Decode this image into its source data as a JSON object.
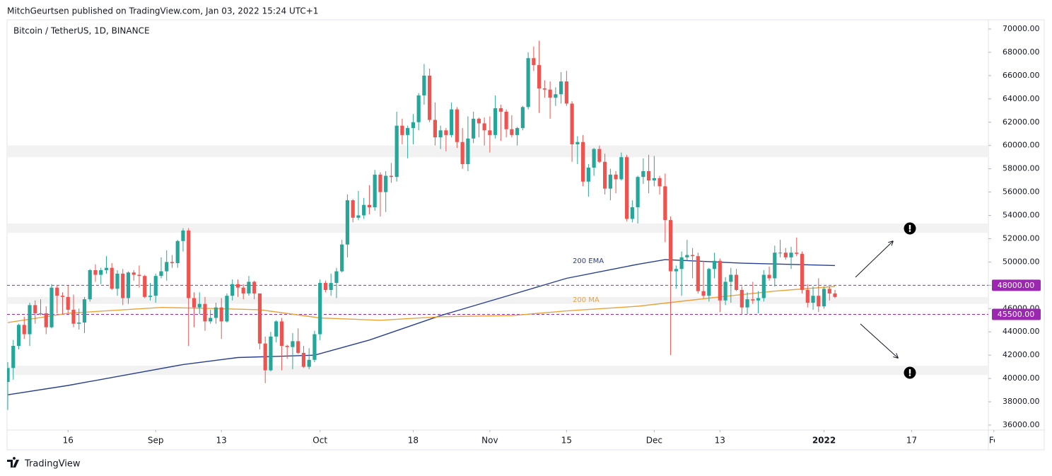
{
  "chart_data": {
    "type": "candlestick",
    "header": "MitchGeurtsen published on TradingView.com, Jan 03, 2022 15:24 UTC+1",
    "title": "Bitcoin / TetherUS, 1D, BINANCE",
    "footer": "TradingView",
    "up_color": "#26a69a",
    "down_color": "#ef5350",
    "level_color": "#9c27b0",
    "zone_color": "#f2f2f2",
    "xlim": [
      -0.13,
      179
    ],
    "ylim": [
      35575,
      70790
    ],
    "xticks": [
      {
        "value": 11,
        "label": "16"
      },
      {
        "value": 27,
        "label": "Sep"
      },
      {
        "value": 39,
        "label": "13"
      },
      {
        "value": 57,
        "label": "Oct"
      },
      {
        "value": 74,
        "label": "18"
      },
      {
        "value": 88,
        "label": "Nov"
      },
      {
        "value": 102,
        "label": "15"
      },
      {
        "value": 118,
        "label": "Dec"
      },
      {
        "value": 130,
        "label": "13"
      },
      {
        "value": 149,
        "label": "2022"
      },
      {
        "value": 165,
        "label": "17"
      },
      {
        "value": 180,
        "label": "Fe"
      }
    ],
    "yticks": [
      {
        "value": 36000,
        "label": "36000.00"
      },
      {
        "value": 38000,
        "label": "38000.00"
      },
      {
        "value": 40000,
        "label": "40000.00"
      },
      {
        "value": 42000,
        "label": "42000.00"
      },
      {
        "value": 44000,
        "label": "44000.00"
      },
      {
        "value": 46000,
        "label": "46000.00"
      },
      {
        "value": 48000,
        "label": "48000.00"
      },
      {
        "value": 50000,
        "label": "50000.00"
      },
      {
        "value": 52000,
        "label": "52000.00"
      },
      {
        "value": 54000,
        "label": "54000.00"
      },
      {
        "value": 56000,
        "label": "56000.00"
      },
      {
        "value": 58000,
        "label": "58000.00"
      },
      {
        "value": 60000,
        "label": "60000.00"
      },
      {
        "value": 62000,
        "label": "62000.00"
      },
      {
        "value": 64000,
        "label": "64000.00"
      },
      {
        "value": 66000,
        "label": "66000.00"
      },
      {
        "value": 68000,
        "label": "68000.00"
      },
      {
        "value": 70000,
        "label": "70000.00"
      }
    ],
    "levels": [
      {
        "value": 48000,
        "label": "48000.00"
      },
      {
        "value": 45500,
        "label": "45500.00"
      }
    ],
    "zones": [
      [
        59000,
        60000
      ],
      [
        52500,
        53300
      ],
      [
        46400,
        47000
      ],
      [
        40300,
        41100
      ]
    ],
    "x": [
      0,
      1,
      2,
      3,
      4,
      5,
      6,
      7,
      8,
      9,
      10,
      11,
      12,
      13,
      14,
      15,
      16,
      17,
      18,
      19,
      20,
      21,
      22,
      23,
      24,
      25,
      26,
      27,
      28,
      29,
      30,
      31,
      32,
      33,
      34,
      35,
      36,
      37,
      38,
      39,
      40,
      41,
      42,
      43,
      44,
      45,
      46,
      47,
      48,
      49,
      50,
      51,
      52,
      53,
      54,
      55,
      56,
      57,
      58,
      59,
      60,
      61,
      62,
      63,
      64,
      65,
      66,
      67,
      68,
      69,
      70,
      71,
      72,
      73,
      74,
      75,
      76,
      77,
      78,
      79,
      80,
      81,
      82,
      83,
      84,
      85,
      86,
      87,
      88,
      89,
      90,
      91,
      92,
      93,
      94,
      95,
      96,
      97,
      98,
      99,
      100,
      101,
      102,
      103,
      104,
      105,
      106,
      107,
      108,
      109,
      110,
      111,
      112,
      113,
      114,
      115,
      116,
      117,
      118,
      119,
      120,
      121,
      122,
      123,
      124,
      125,
      126,
      127,
      128,
      129,
      130,
      131,
      132,
      133,
      134,
      135,
      136,
      137,
      138,
      139,
      140,
      141,
      142,
      143,
      144,
      145,
      146,
      147,
      148,
      149,
      150,
      151
    ],
    "open": [
      39700,
      40900,
      42800,
      44600,
      43800,
      46300,
      45600,
      45600,
      44400,
      47800,
      47100,
      47000,
      45900,
      44700,
      44800,
      46800,
      49300,
      48900,
      49300,
      49500,
      47700,
      49000,
      46900,
      49100,
      48900,
      48800,
      47000,
      47100,
      48800,
      49200,
      50000,
      49900,
      51800,
      52700,
      46900,
      46100,
      46400,
      44900,
      45200,
      46100,
      44900,
      47100,
      48100,
      47800,
      47300,
      48300,
      47300,
      43000,
      40700,
      43600,
      44900,
      42800,
      42700,
      43200,
      42200,
      41000,
      41600,
      43800,
      48200,
      47600,
      48200,
      49200,
      51500,
      55300,
      53800,
      54000,
      54900,
      54700,
      57500,
      56000,
      57400,
      57300,
      61700,
      60900,
      61500,
      62000,
      64300,
      66000,
      62200,
      60700,
      61300,
      60900,
      63100,
      60300,
      58400,
      60600,
      62300,
      61900,
      61300,
      60900,
      63200,
      62900,
      61400,
      60900,
      61500,
      63300,
      67500,
      66900,
      64900,
      64800,
      64100,
      64400,
      65500,
      63600,
      60100,
      60300,
      56900,
      58100,
      59700,
      58600,
      56300,
      57500,
      57100,
      59000,
      53700,
      54700,
      57300,
      57800,
      57000,
      57200,
      56500,
      53600,
      49200,
      49400,
      50400,
      50600,
      50500,
      47500,
      47100,
      49400,
      50100,
      46700,
      48300,
      48900,
      47600,
      46100,
      46800,
      46700,
      46900,
      48900,
      48600,
      50800,
      50800,
      50400,
      50800,
      50700,
      47600,
      46500,
      47100,
      46200,
      47700,
      47300
    ],
    "high": [
      41400,
      43300,
      44700,
      45300,
      46500,
      46700,
      46800,
      46200,
      48100,
      48000,
      47400,
      48000,
      47200,
      46000,
      47000,
      49400,
      49800,
      49500,
      50500,
      49900,
      49300,
      49400,
      49200,
      49300,
      49700,
      48900,
      48200,
      49000,
      50400,
      51000,
      50600,
      51900,
      52900,
      52900,
      47400,
      47400,
      47000,
      45900,
      46500,
      46900,
      47300,
      48500,
      48500,
      48100,
      48800,
      48400,
      47300,
      43600,
      44000,
      45000,
      45200,
      42900,
      43900,
      44300,
      42800,
      42600,
      44100,
      48500,
      48400,
      49000,
      49500,
      51900,
      55800,
      55400,
      56100,
      55500,
      56600,
      57900,
      57700,
      57800,
      58500,
      62900,
      62300,
      61700,
      62700,
      64500,
      67000,
      66600,
      63700,
      61700,
      61500,
      63700,
      63300,
      61500,
      62500,
      62900,
      62400,
      62400,
      62500,
      64300,
      63500,
      63100,
      62600,
      61600,
      63400,
      68000,
      68500,
      69000,
      65600,
      65500,
      65000,
      66300,
      66400,
      63800,
      60800,
      60900,
      58400,
      59800,
      60000,
      59300,
      58000,
      57800,
      59400,
      59200,
      55300,
      57400,
      58900,
      59200,
      59100,
      57400,
      57600,
      53900,
      49700,
      50900,
      51900,
      51200,
      50800,
      50100,
      49500,
      50800,
      50300,
      48700,
      49500,
      49400,
      47900,
      47400,
      48300,
      47500,
      49300,
      49600,
      51400,
      51900,
      51200,
      51300,
      52100,
      50900,
      48100,
      47900,
      48600,
      47900,
      47900,
      47600
    ],
    "low": [
      37300,
      39900,
      42500,
      43400,
      42800,
      44700,
      45400,
      43800,
      44300,
      45600,
      45500,
      45600,
      44400,
      44200,
      43900,
      46600,
      48300,
      48100,
      49000,
      47600,
      47100,
      46300,
      46400,
      48400,
      47800,
      46900,
      46700,
      46500,
      48600,
      48400,
      49500,
      49500,
      50900,
      42800,
      44400,
      45500,
      44100,
      44700,
      44700,
      43400,
      44800,
      46700,
      47000,
      46800,
      47100,
      46800,
      42500,
      39600,
      40600,
      43100,
      40700,
      41700,
      40800,
      42100,
      40900,
      40800,
      41400,
      43300,
      47400,
      47100,
      46900,
      49100,
      50400,
      53400,
      53600,
      53700,
      54100,
      54400,
      53900,
      54300,
      56800,
      56900,
      60100,
      58900,
      60100,
      61300,
      63500,
      62000,
      60000,
      59700,
      59500,
      60700,
      59800,
      58000,
      57800,
      60200,
      60700,
      60000,
      59400,
      60600,
      60400,
      60700,
      60700,
      60000,
      61300,
      63100,
      66400,
      62800,
      64100,
      62300,
      63400,
      63600,
      63400,
      58600,
      58400,
      56500,
      55600,
      57400,
      58500,
      55800,
      55300,
      55900,
      57000,
      53500,
      53400,
      53300,
      56700,
      55900,
      56500,
      55800,
      51700,
      42000,
      47700,
      47100,
      50100,
      48600,
      47300,
      46900,
      46600,
      48600,
      45700,
      46300,
      46500,
      47500,
      45500,
      45500,
      46400,
      45600,
      46600,
      48400,
      47900,
      50400,
      50200,
      49400,
      50500,
      47300,
      46100,
      45900,
      45700,
      46000,
      46700,
      46900
    ],
    "close": [
      40900,
      42800,
      44600,
      43800,
      46300,
      45600,
      45600,
      44400,
      47800,
      47100,
      47000,
      45900,
      44700,
      44800,
      46800,
      49300,
      48900,
      49300,
      49500,
      47700,
      49000,
      46900,
      49100,
      48900,
      48800,
      47000,
      47100,
      48800,
      49200,
      50000,
      49900,
      51800,
      52700,
      46900,
      46100,
      46400,
      44900,
      45200,
      46100,
      44900,
      47100,
      48100,
      47800,
      47300,
      48300,
      47300,
      43000,
      40700,
      43600,
      44900,
      42800,
      42700,
      43200,
      42200,
      41000,
      41600,
      43800,
      48200,
      47600,
      48200,
      49200,
      51500,
      55300,
      53800,
      54000,
      54900,
      54700,
      57500,
      56000,
      57400,
      57300,
      61700,
      60900,
      61500,
      62000,
      64300,
      66000,
      62200,
      60700,
      61300,
      60900,
      63100,
      60300,
      58400,
      60600,
      62300,
      61900,
      61300,
      60900,
      63200,
      62900,
      61400,
      60900,
      61500,
      63300,
      67500,
      66900,
      64900,
      64800,
      64100,
      64400,
      65500,
      63600,
      60100,
      60300,
      56900,
      58100,
      59700,
      58600,
      56300,
      57500,
      57100,
      59000,
      53700,
      54700,
      57300,
      57800,
      57000,
      57200,
      56500,
      53600,
      49200,
      49400,
      50400,
      50600,
      50500,
      47500,
      47100,
      49400,
      50100,
      46700,
      48300,
      48900,
      47600,
      46100,
      46800,
      46700,
      46900,
      48900,
      48600,
      50800,
      50800,
      50400,
      50800,
      50700,
      47600,
      46500,
      47100,
      46200,
      47700,
      47300,
      47000
    ],
    "series": [
      {
        "name": "200 EMA",
        "color": "#283f91",
        "x": [
          0,
          11,
          32,
          42,
          56,
          66,
          79,
          92,
          102,
          115,
          120,
          134,
          151
        ],
        "values": [
          38600,
          39400,
          41200,
          41800,
          42000,
          43300,
          45400,
          47200,
          48600,
          49800,
          50200,
          49900,
          49700
        ]
      },
      {
        "name": "200 MA",
        "color": "#e8a33d",
        "x": [
          0,
          11,
          28,
          38,
          46,
          57,
          68,
          79,
          92,
          102,
          115,
          128,
          140,
          151
        ],
        "values": [
          44800,
          45600,
          46100,
          46000,
          45900,
          45200,
          45000,
          45300,
          45400,
          45800,
          46200,
          46900,
          47500,
          47900
        ]
      }
    ]
  }
}
